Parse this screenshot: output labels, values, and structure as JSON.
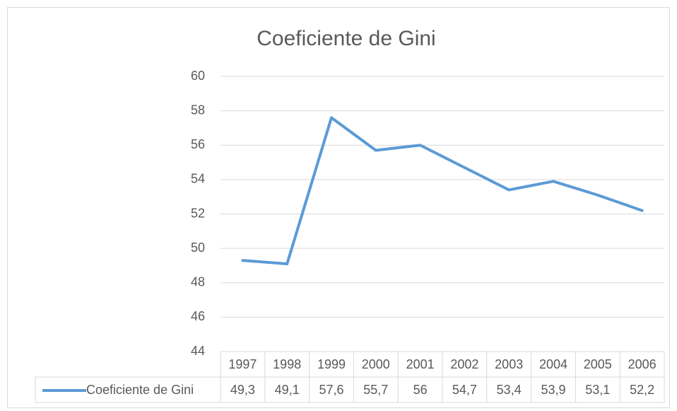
{
  "chart_data": {
    "type": "line",
    "title": "Coeficiente de Gini",
    "categories": [
      "1997",
      "1998",
      "1999",
      "2000",
      "2001",
      "2002",
      "2003",
      "2004",
      "2005",
      "2006"
    ],
    "series": [
      {
        "name": "Coeficiente de Gini",
        "color": "#5b9bd5",
        "values": [
          49.3,
          49.1,
          57.6,
          55.7,
          56,
          54.7,
          53.4,
          53.9,
          53.1,
          52.2
        ],
        "value_labels": [
          "49,3",
          "49,1",
          "57,6",
          "55,7",
          "56",
          "54,7",
          "53,4",
          "53,9",
          "53,1",
          "52,2"
        ]
      }
    ],
    "ylim": [
      44,
      60
    ],
    "yticks": [
      44,
      46,
      48,
      50,
      52,
      54,
      56,
      58,
      60
    ],
    "grid": true
  }
}
